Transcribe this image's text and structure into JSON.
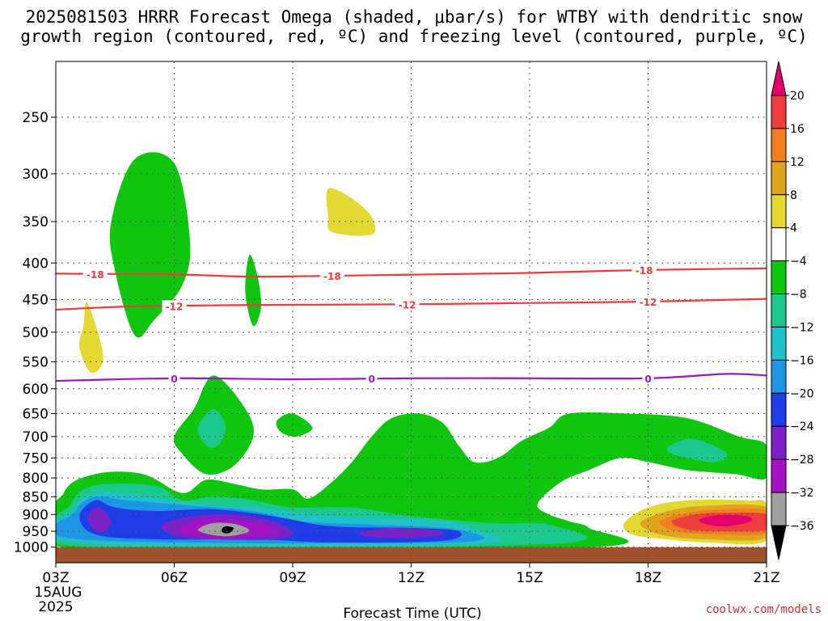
{
  "title_line1": "2025081503 HRRR Forecast Omega (shaded, μbar/s) for WTBY with dendritic snow",
  "title_line2": "growth region (contoured, red, ºC) and freezing level (contoured, purple, ºC)",
  "credit": "coolwx.com/models",
  "chart_data": {
    "type": "time-height cross-section",
    "title": "2025081503 HRRR Forecast Omega (shaded, μbar/s) for WTBY with dendritic snow growth region (contoured, red, ºC) and freezing level (contoured, purple, ºC)",
    "xlabel": "Forecast Time (UTC)",
    "x_ticks": [
      "03Z",
      "06Z",
      "09Z",
      "12Z",
      "15Z",
      "18Z",
      "21Z"
    ],
    "x_hours": [
      3,
      6,
      9,
      12,
      15,
      18,
      21
    ],
    "x_start_date": [
      "15AUG",
      "2025"
    ],
    "y_ticks": [
      250,
      300,
      350,
      400,
      450,
      500,
      550,
      600,
      650,
      700,
      750,
      800,
      850,
      900,
      950,
      1000
    ],
    "ylim": [
      1020,
      200
    ],
    "grid": true,
    "colorbar": {
      "labels": [
        "20",
        "16",
        "12",
        "8",
        "4",
        "−4",
        "−8",
        "−12",
        "−16",
        "−20",
        "−24",
        "−28",
        "−32",
        "−36"
      ],
      "colors": [
        "#e4006e",
        "#ef3c3c",
        "#ef7f1f",
        "#e0a41e",
        "#e4d832",
        "#ffffff",
        "#0fc60f",
        "#1bc98e",
        "#1ec2c8",
        "#1e96e6",
        "#1e3ce8",
        "#7a22c8",
        "#a511c4",
        "#a0a0a0",
        "#000000"
      ]
    },
    "contours": [
      {
        "name": "dendritic growth -18",
        "label": "-18",
        "color": "#ee3a3a",
        "points": [
          [
            3,
            414
          ],
          [
            6,
            415
          ],
          [
            8,
            418
          ],
          [
            11,
            416
          ],
          [
            15,
            413
          ],
          [
            18,
            409
          ],
          [
            21,
            407
          ]
        ],
        "label_hours": [
          4,
          10,
          17.9
        ]
      },
      {
        "name": "dendritic growth -12",
        "label": "-12",
        "color": "#ee3a3a",
        "points": [
          [
            3,
            465
          ],
          [
            5,
            460
          ],
          [
            8,
            458
          ],
          [
            12,
            457
          ],
          [
            15,
            455
          ],
          [
            18,
            453
          ],
          [
            21,
            449
          ]
        ],
        "label_hours": [
          6,
          11.9,
          18
        ]
      },
      {
        "name": "freezing level 0",
        "label": "0",
        "color": "#9a18c0",
        "points": [
          [
            3,
            585
          ],
          [
            6,
            580
          ],
          [
            9,
            582
          ],
          [
            12,
            580
          ],
          [
            15,
            580
          ],
          [
            18,
            580
          ],
          [
            20,
            572
          ],
          [
            21,
            575
          ]
        ],
        "label_hours": [
          6,
          11,
          18
        ]
      }
    ],
    "omega_regions": [
      {
        "range": "-8 to -4",
        "color": "#0fc60f",
        "points": [
          [
            4.4,
            351
          ],
          [
            5,
            286
          ],
          [
            6,
            290
          ],
          [
            6.4,
            373
          ],
          [
            6.2,
            430
          ],
          [
            5.5,
            480
          ],
          [
            5,
            505
          ],
          [
            4.5,
            410
          ]
        ]
      },
      {
        "range": "-8 to -4",
        "color": "#0fc60f",
        "points": [
          [
            7.8,
            440
          ],
          [
            7.9,
            390
          ],
          [
            8.1,
            415
          ],
          [
            8.2,
            460
          ],
          [
            8,
            490
          ]
        ]
      },
      {
        "range": "4 to 8",
        "color": "#e4d832",
        "points": [
          [
            3.7,
            490
          ],
          [
            3.8,
            455
          ],
          [
            4.2,
            540
          ],
          [
            3.9,
            570
          ],
          [
            3.6,
            525
          ]
        ]
      },
      {
        "range": "4 to 8",
        "color": "#e4d832",
        "points": [
          [
            9.9,
            345
          ],
          [
            9.9,
            315
          ],
          [
            10.5,
            325
          ],
          [
            11,
            345
          ],
          [
            11,
            365
          ],
          [
            10,
            362
          ]
        ]
      },
      {
        "range": "-8 to -4",
        "color": "#0fc60f",
        "points": [
          [
            6,
            700
          ],
          [
            6.5,
            640
          ],
          [
            7,
            575
          ],
          [
            7.8,
            640
          ],
          [
            8,
            700
          ],
          [
            7.5,
            770
          ],
          [
            6.8,
            790
          ],
          [
            6.2,
            740
          ]
        ]
      },
      {
        "range": "-12 to -8",
        "color": "#1bc98e",
        "points": [
          [
            6.6,
            680
          ],
          [
            7,
            640
          ],
          [
            7.3,
            680
          ],
          [
            7.1,
            720
          ],
          [
            6.8,
            720
          ]
        ]
      },
      {
        "range": "-8 to -4",
        "color": "#0fc60f",
        "points": [
          [
            8.6,
            665
          ],
          [
            9,
            650
          ],
          [
            9.5,
            680
          ],
          [
            9.1,
            700
          ],
          [
            8.7,
            690
          ]
        ]
      },
      {
        "range": "-8 to -4",
        "color": "#0fc60f",
        "points": [
          [
            3.2,
            840
          ],
          [
            4,
            790
          ],
          [
            5.2,
            790
          ],
          [
            6.2,
            840
          ],
          [
            6.8,
            805
          ],
          [
            7.5,
            815
          ],
          [
            8.2,
            830
          ],
          [
            9,
            830
          ],
          [
            9.4,
            855
          ],
          [
            10,
            810
          ],
          [
            10.5,
            760
          ],
          [
            11,
            700
          ],
          [
            11.5,
            660
          ],
          [
            12.2,
            650
          ],
          [
            12.8,
            670
          ],
          [
            13.2,
            720
          ],
          [
            13.6,
            760
          ],
          [
            14.2,
            750
          ],
          [
            14.8,
            710
          ],
          [
            15.5,
            680
          ],
          [
            16,
            650
          ],
          [
            17.5,
            650
          ],
          [
            19,
            660
          ],
          [
            20.3,
            700
          ],
          [
            21,
            720
          ],
          [
            21,
            800
          ],
          [
            20.2,
            790
          ],
          [
            19,
            780
          ],
          [
            18,
            760
          ],
          [
            17.3,
            750
          ],
          [
            16.5,
            780
          ],
          [
            15.8,
            810
          ],
          [
            15.2,
            870
          ],
          [
            15.5,
            900
          ],
          [
            16,
            920
          ],
          [
            16.5,
            940
          ],
          [
            16.5,
            1000
          ],
          [
            3.2,
            1000
          ]
        ]
      },
      {
        "range": "-12 to -8",
        "color": "#1bc98e",
        "points": [
          [
            18.5,
            725
          ],
          [
            19,
            705
          ],
          [
            19.5,
            715
          ],
          [
            20,
            740
          ],
          [
            19.7,
            760
          ],
          [
            19,
            750
          ],
          [
            18.6,
            740
          ]
        ]
      },
      {
        "range": "-12 to -8",
        "color": "#1bc98e",
        "points": [
          [
            3.4,
            870
          ],
          [
            4,
            820
          ],
          [
            5.5,
            820
          ],
          [
            6.2,
            860
          ],
          [
            7,
            850
          ],
          [
            8,
            860
          ],
          [
            9,
            880
          ],
          [
            10.5,
            880
          ],
          [
            12,
            905
          ],
          [
            14,
            925
          ],
          [
            15.5,
            930
          ],
          [
            15.5,
            990
          ],
          [
            3.4,
            995
          ]
        ]
      },
      {
        "range": "-16 to -12",
        "color": "#1ec2c8",
        "points": [
          [
            3.5,
            880
          ],
          [
            4,
            840
          ],
          [
            5,
            845
          ],
          [
            6.5,
            870
          ],
          [
            8,
            880
          ],
          [
            9.5,
            900
          ],
          [
            11,
            910
          ],
          [
            12.5,
            915
          ],
          [
            13.5,
            940
          ],
          [
            13.5,
            990
          ],
          [
            3.5,
            985
          ]
        ]
      },
      {
        "range": "-20 to -16",
        "color": "#1e96e6",
        "points": [
          [
            3.5,
            890
          ],
          [
            4,
            850
          ],
          [
            4.8,
            860
          ],
          [
            6.5,
            875
          ],
          [
            8,
            890
          ],
          [
            9.2,
            920
          ],
          [
            11,
            930
          ],
          [
            13.2,
            945
          ],
          [
            13,
            985
          ],
          [
            3.6,
            975
          ]
        ]
      },
      {
        "range": "-24 to -20",
        "color": "#1e3ce8",
        "points": [
          [
            3.6,
            905
          ],
          [
            4,
            860
          ],
          [
            4.5,
            880
          ],
          [
            5.5,
            890
          ],
          [
            7,
            885
          ],
          [
            8.5,
            905
          ],
          [
            10,
            935
          ],
          [
            12,
            940
          ],
          [
            13.2,
            950
          ],
          [
            12.8,
            980
          ],
          [
            10,
            985
          ],
          [
            8,
            975
          ],
          [
            5.5,
            975
          ],
          [
            4,
            960
          ]
        ]
      },
      {
        "range": "-28 to -24",
        "color": "#7a22c8",
        "points": [
          [
            3.8,
            910
          ],
          [
            4.1,
            880
          ],
          [
            4.4,
            925
          ],
          [
            4.1,
            955
          ]
        ]
      },
      {
        "range": "-28 to -24",
        "color": "#7a22c8",
        "points": [
          [
            5.7,
            930
          ],
          [
            6.5,
            905
          ],
          [
            7.5,
            900
          ],
          [
            8.5,
            920
          ],
          [
            9,
            955
          ],
          [
            8.5,
            975
          ],
          [
            7,
            975
          ],
          [
            6,
            965
          ]
        ]
      },
      {
        "range": "-28 to -24",
        "color": "#7a22c8",
        "points": [
          [
            10.7,
            955
          ],
          [
            11.5,
            940
          ],
          [
            12.5,
            945
          ],
          [
            12.8,
            960
          ],
          [
            12,
            970
          ],
          [
            11,
            968
          ]
        ]
      },
      {
        "range": "-32 to -28",
        "color": "#a511c4",
        "points": [
          [
            6.1,
            945
          ],
          [
            6.7,
            915
          ],
          [
            7.6,
            915
          ],
          [
            8.4,
            935
          ],
          [
            8.6,
            960
          ],
          [
            7.5,
            970
          ],
          [
            6.5,
            965
          ]
        ]
      },
      {
        "range": "-36 to -32",
        "color": "#a0a0a0",
        "points": [
          [
            6.6,
            945
          ],
          [
            7,
            925
          ],
          [
            7.6,
            930
          ],
          [
            7.9,
            950
          ],
          [
            7.4,
            965
          ],
          [
            6.9,
            960
          ]
        ]
      },
      {
        "range": "< -36",
        "color": "#000000",
        "points": [
          [
            7.2,
            945
          ],
          [
            7.3,
            935
          ],
          [
            7.5,
            940
          ],
          [
            7.4,
            955
          ],
          [
            7.25,
            955
          ]
        ]
      },
      {
        "range": "4 to 8",
        "color": "#e4d832",
        "points": [
          [
            17.4,
            925
          ],
          [
            18,
            880
          ],
          [
            19,
            860
          ],
          [
            20.5,
            860
          ],
          [
            21,
            870
          ],
          [
            21,
            980
          ],
          [
            19.5,
            985
          ],
          [
            18.5,
            975
          ],
          [
            17.6,
            960
          ]
        ]
      },
      {
        "range": "8 to 12",
        "color": "#e0a41e",
        "points": [
          [
            17.8,
            925
          ],
          [
            18.5,
            890
          ],
          [
            19.5,
            875
          ],
          [
            21,
            880
          ],
          [
            21,
            970
          ],
          [
            19.5,
            975
          ],
          [
            18.3,
            960
          ]
        ]
      },
      {
        "range": "12 to 16",
        "color": "#ef7f1f",
        "points": [
          [
            18.3,
            920
          ],
          [
            19,
            895
          ],
          [
            20,
            885
          ],
          [
            21,
            890
          ],
          [
            21,
            955
          ],
          [
            19.8,
            960
          ],
          [
            18.7,
            950
          ]
        ]
      },
      {
        "range": "16 to 20",
        "color": "#ef3c3c",
        "points": [
          [
            18.6,
            920
          ],
          [
            19.2,
            900
          ],
          [
            20,
            895
          ],
          [
            21,
            900
          ],
          [
            21,
            945
          ],
          [
            20,
            950
          ],
          [
            19,
            945
          ]
        ]
      },
      {
        "range": "> 20",
        "color": "#e4006e",
        "points": [
          [
            19.3,
            915
          ],
          [
            19.8,
            902
          ],
          [
            20.5,
            905
          ],
          [
            20.6,
            920
          ],
          [
            20,
            935
          ],
          [
            19.5,
            930
          ]
        ]
      }
    ],
    "terrain": {
      "color": "#a0522d",
      "top_hpa": 1000
    }
  }
}
